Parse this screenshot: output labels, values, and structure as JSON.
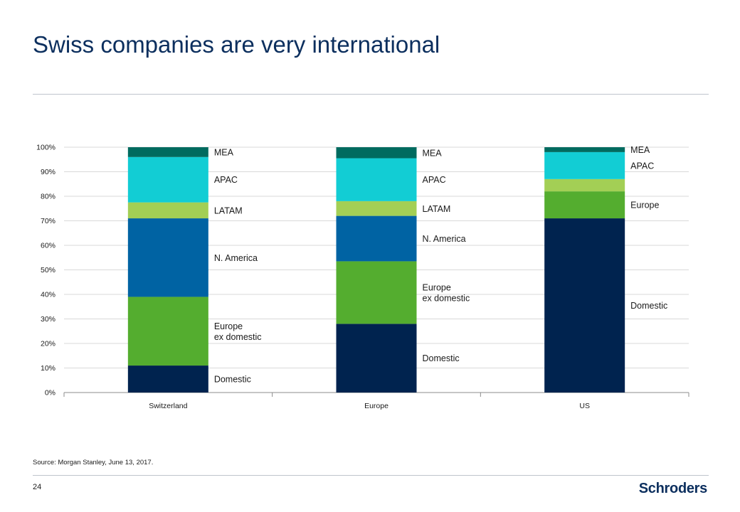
{
  "slide": {
    "title": "Swiss companies are very international",
    "source": "Source: Morgan Stanley, June 13, 2017.",
    "page_number": "24",
    "brand": "Schroders"
  },
  "colors": {
    "Domestic": "#00234f",
    "Europe ex domestic": "#54ad2f",
    "N. America": "#0063a3",
    "LATAM": "#a3cf55",
    "APAC": "#12cdd4",
    "MEA": "#006b5f",
    "Europe": "#54ad2f",
    "gridline": "#d9d9d9",
    "axis": "#8c8c8c"
  },
  "chart_data": {
    "type": "stacked-bar",
    "title": "",
    "xlabel": "",
    "ylabel": "",
    "ylim": [
      0,
      100
    ],
    "yticks": [
      "0%",
      "10%",
      "20%",
      "30%",
      "40%",
      "50%",
      "60%",
      "70%",
      "80%",
      "90%",
      "100%"
    ],
    "grid": true,
    "categories": [
      "Switzerland",
      "Europe",
      "US"
    ],
    "stacks": [
      {
        "category": "Switzerland",
        "segments": [
          {
            "name": "Domestic",
            "label": [
              "Domestic"
            ],
            "value": 11
          },
          {
            "name": "Europe ex domestic",
            "label": [
              "Europe",
              "ex domestic"
            ],
            "value": 28
          },
          {
            "name": "N. America",
            "label": [
              "N. America"
            ],
            "value": 32
          },
          {
            "name": "LATAM",
            "label": [
              "LATAM"
            ],
            "value": 6.5
          },
          {
            "name": "APAC",
            "label": [
              "APAC"
            ],
            "value": 18.5
          },
          {
            "name": "MEA",
            "label": [
              "MEA"
            ],
            "value": 4
          }
        ]
      },
      {
        "category": "Europe",
        "segments": [
          {
            "name": "Domestic",
            "label": [
              "Domestic"
            ],
            "value": 28
          },
          {
            "name": "Europe ex domestic",
            "label": [
              "Europe",
              "ex domestic"
            ],
            "value": 25.5
          },
          {
            "name": "N. America",
            "label": [
              "N. America"
            ],
            "value": 18.5
          },
          {
            "name": "LATAM",
            "label": [
              "LATAM"
            ],
            "value": 6
          },
          {
            "name": "APAC",
            "label": [
              "APAC"
            ],
            "value": 17.5
          },
          {
            "name": "MEA",
            "label": [
              "MEA"
            ],
            "value": 4.5
          }
        ]
      },
      {
        "category": "US",
        "segments": [
          {
            "name": "Domestic",
            "label": [
              "Domestic"
            ],
            "value": 71
          },
          {
            "name": "Europe",
            "label": [
              "Europe"
            ],
            "value": 11
          },
          {
            "name": "LATAM",
            "label": [],
            "value": 5
          },
          {
            "name": "APAC",
            "label": [
              "APAC"
            ],
            "value": 11
          },
          {
            "name": "MEA",
            "label": [
              "MEA"
            ],
            "value": 2
          }
        ]
      }
    ]
  }
}
